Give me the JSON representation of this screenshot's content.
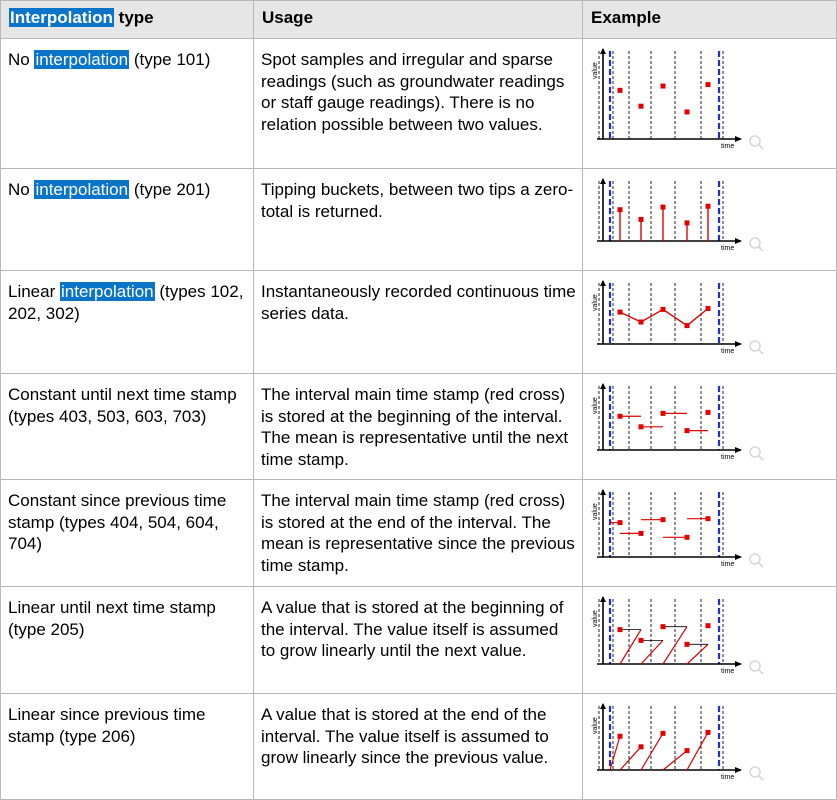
{
  "header": {
    "col1_highlight": "Interpolation",
    "col1_rest": " type",
    "col2": "Usage",
    "col3": "Example"
  },
  "rows": [
    {
      "type_pre": "No ",
      "type_hl": "interpolation",
      "type_post": " (type 101)",
      "usage": "Spot samples and irregular and sparse readings (such as groundwater readings or staff gauge readings). There is no relation possible between two values."
    },
    {
      "type_pre": "No ",
      "type_hl": "interpolation",
      "type_post": " (type 201)",
      "usage": "Tipping buckets, between two tips a zero-total is returned."
    },
    {
      "type_pre": "Linear ",
      "type_hl": "interpolation",
      "type_post": " (types 102, 202, 302)",
      "usage": "Instantaneously recorded continuous time series data."
    },
    {
      "type_pre": "Constant until next time stamp (types 403, 503, 603, 703)",
      "type_hl": "",
      "type_post": "",
      "usage": "The interval main time stamp (red cross) is stored at the beginning of the interval. The mean is representative until the next time stamp."
    },
    {
      "type_pre": "Constant since previous time stamp (types 404, 504, 604, 704)",
      "type_hl": "",
      "type_post": "",
      "usage": "The interval main time stamp (red cross) is stored at the end of the interval. The mean is representative since the previous time stamp."
    },
    {
      "type_pre": "Linear until next time stamp (type 205)",
      "type_hl": "",
      "type_post": "",
      "usage": "A value that is stored at the beginning of the interval. The value itself is assumed to grow linearly until the next value."
    },
    {
      "type_pre": "Linear since previous time stamp (type 206)",
      "type_hl": "",
      "type_post": "",
      "usage": "A value that is stored at the end of the interval. The value itself is assumed to grow linearly since the previous value."
    }
  ],
  "axis": {
    "x_label": "time",
    "y_label": "value"
  },
  "colors": {
    "header_bg": "#e6e6e6",
    "highlight": "#0a74c8",
    "series": "#e00000",
    "interval_marker": "#1f2fd0",
    "border": "#b8b8b8"
  }
}
